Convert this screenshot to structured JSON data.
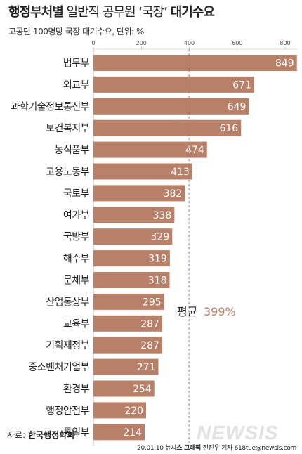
{
  "header": {
    "title_bold": "행정부처별",
    "title_regular": "일반직 공무원 ‘국장’",
    "title_bold_end": "대기수요",
    "subtitle": "고공단 100명당 국장 대기수요, 단위: %"
  },
  "chart_data": {
    "type": "bar",
    "orientation": "horizontal",
    "categories": [
      "법무부",
      "외교부",
      "과학기술정보통신부",
      "보건복지부",
      "농식품부",
      "고용노동부",
      "국토부",
      "여가부",
      "국방부",
      "해수부",
      "문체부",
      "산업통상부",
      "교육부",
      "기획재정부",
      "중소벤처기업부",
      "환경부",
      "행정안전부",
      "통일부"
    ],
    "values": [
      849,
      671,
      649,
      616,
      474,
      413,
      382,
      338,
      329,
      319,
      318,
      295,
      287,
      287,
      271,
      254,
      220,
      214
    ],
    "value_labels": [
      "849",
      "671",
      "649",
      "616",
      "474",
      "413",
      "382",
      "338",
      "329",
      "319",
      "318",
      "295",
      "287",
      "287",
      "271",
      "254",
      "220",
      "214"
    ],
    "xlim": [
      0,
      850
    ],
    "xticks": [
      0,
      200,
      400,
      600,
      800
    ],
    "xtick_labels": [
      "0",
      "200",
      "400",
      "600",
      "800"
    ],
    "average": {
      "label": "평균",
      "value_text": "399%",
      "value": 399
    },
    "bar_color": "#b87f69",
    "average_color": "#b87f69"
  },
  "footer": {
    "source_prefix": "자료:",
    "source_name": "한국행정학회",
    "credit_date": "20.01.10",
    "credit_org": "뉴시스 그래픽",
    "credit_author": "전진우 기자 618tue@newsis.com",
    "watermark": "NEWSIS"
  }
}
